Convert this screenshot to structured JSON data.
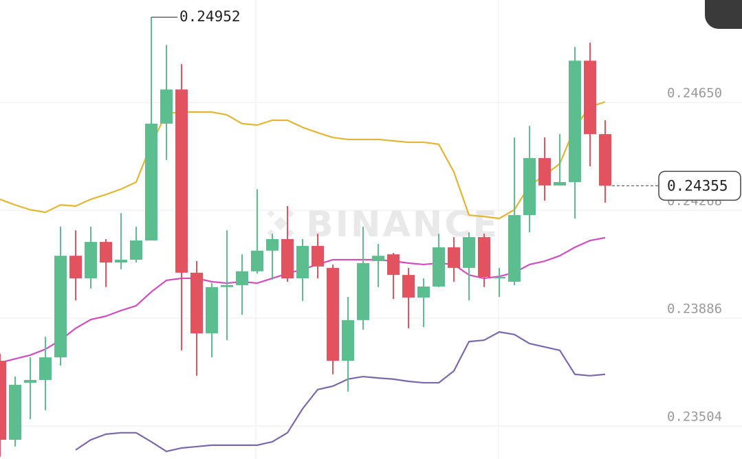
{
  "chart_data": {
    "type": "candlestick",
    "watermark": "BINANCE",
    "ylim": [
      0.23387,
      0.25013
    ],
    "yticks": [
      {
        "value": 0.2465,
        "label": "0.24650"
      },
      0.24268,
      0.23886,
      0.23504
    ],
    "grid": true,
    "up_color": "#5cbd8e",
    "down_color": "#e2535f",
    "open": [
      0.23735,
      0.23455,
      0.23657,
      0.23667,
      0.23747,
      0.24107,
      0.24027,
      0.24156,
      0.24083,
      0.24093,
      0.24161,
      0.24575,
      0.24696,
      0.24047,
      0.23832,
      0.23996,
      0.24003,
      0.24052,
      0.24125,
      0.24166,
      0.24027,
      0.24142,
      0.24064,
      0.23735,
      0.23879,
      0.24088,
      0.24112,
      0.24039,
      0.23959,
      0.23998,
      0.24137,
      0.24064,
      0.24173,
      0.24027,
      0.24015,
      0.24251,
      0.24453,
      0.24356,
      0.24368,
      0.24798,
      0.24538
    ],
    "close": [
      0.23455,
      0.2365,
      0.23667,
      0.23747,
      0.24107,
      0.24027,
      0.24156,
      0.24083,
      0.24093,
      0.24161,
      0.24575,
      0.24696,
      0.24047,
      0.23832,
      0.23996,
      0.24003,
      0.24052,
      0.24125,
      0.24166,
      0.24027,
      0.24142,
      0.24069,
      0.23735,
      0.23879,
      0.24081,
      0.24107,
      0.24039,
      0.23959,
      0.23998,
      0.24137,
      0.24064,
      0.24173,
      0.24032,
      0.24032,
      0.24251,
      0.24453,
      0.24356,
      0.24368,
      0.24798,
      0.24538,
      0.24355
    ],
    "high": [
      0.2376,
      0.23679,
      0.23747,
      0.2382,
      0.2421,
      0.24197,
      0.2421,
      0.24166,
      0.24258,
      0.2421,
      0.24952,
      0.24854,
      0.24786,
      0.24088,
      0.2401,
      0.24197,
      0.24112,
      0.24343,
      0.24185,
      0.24283,
      0.24166,
      0.24185,
      0.24076,
      0.23961,
      0.2421,
      0.24149,
      0.24117,
      0.24064,
      0.24027,
      0.24185,
      0.24173,
      0.2419,
      0.24185,
      0.24064,
      0.24526,
      0.24567,
      0.24526,
      0.24538,
      0.24847,
      0.24862,
      0.24587
    ],
    "low": [
      0.23395,
      0.23431,
      0.23528,
      0.2356,
      0.23718,
      0.23949,
      0.23991,
      0.23996,
      0.24059,
      0.24083,
      0.24161,
      0.24446,
      0.23772,
      0.23682,
      0.23747,
      0.23808,
      0.23898,
      0.24044,
      0.24022,
      0.24015,
      0.23947,
      0.24027,
      0.23687,
      0.23626,
      0.23845,
      0.23996,
      0.23954,
      0.2385,
      0.23854,
      0.23996,
      0.24015,
      0.23949,
      0.23996,
      0.23961,
      0.24003,
      0.2419,
      0.24302,
      0.24356,
      0.24239,
      0.24424,
      0.24295
    ],
    "lines": [
      {
        "color": "#e3b531",
        "values": [
          0.24307,
          0.24287,
          0.2427,
          0.24261,
          0.24287,
          0.24283,
          0.24307,
          0.24324,
          0.24343,
          0.24368,
          0.24502,
          0.24611,
          0.24616,
          0.24616,
          0.24616,
          0.24606,
          0.24575,
          0.2457,
          0.24587,
          0.24587,
          0.24562,
          0.24543,
          0.24526,
          0.24519,
          0.24519,
          0.24519,
          0.24514,
          0.24509,
          0.24509,
          0.24502,
          0.24404,
          0.24251,
          0.24246,
          0.24239,
          0.2427,
          0.24356,
          0.24392,
          0.24433,
          0.24562,
          0.24635,
          0.24652
        ]
      },
      {
        "color": "#d24cc1",
        "values": [
          0.23728,
          0.23742,
          0.23755,
          0.23776,
          0.23808,
          0.2385,
          0.23881,
          0.23893,
          0.23913,
          0.2393,
          0.23979,
          0.2402,
          0.24027,
          0.24027,
          0.24015,
          0.2401,
          0.24015,
          0.2401,
          0.24027,
          0.24044,
          0.24059,
          0.24076,
          0.24093,
          0.24093,
          0.24093,
          0.24093,
          0.24088,
          0.24081,
          0.24076,
          0.24081,
          0.24076,
          0.24039,
          0.24027,
          0.24034,
          0.24047,
          0.24076,
          0.24088,
          0.24107,
          0.24137,
          0.24161,
          0.24171
        ]
      },
      {
        "color": "#7a67ad",
        "values": [
          null,
          null,
          null,
          null,
          null,
          0.23419,
          0.23455,
          0.23475,
          0.2348,
          0.2348,
          0.23448,
          0.23414,
          0.23426,
          0.23431,
          0.23436,
          0.23436,
          0.23436,
          0.23436,
          0.23448,
          0.2348,
          0.23565,
          0.23633,
          0.23645,
          0.2367,
          0.23679,
          0.23674,
          0.2367,
          0.23662,
          0.23657,
          0.23657,
          0.23699,
          0.23803,
          0.23808,
          0.23837,
          0.23828,
          0.23796,
          0.23784,
          0.23772,
          0.23687,
          0.23682,
          0.23687
        ]
      }
    ]
  }
}
